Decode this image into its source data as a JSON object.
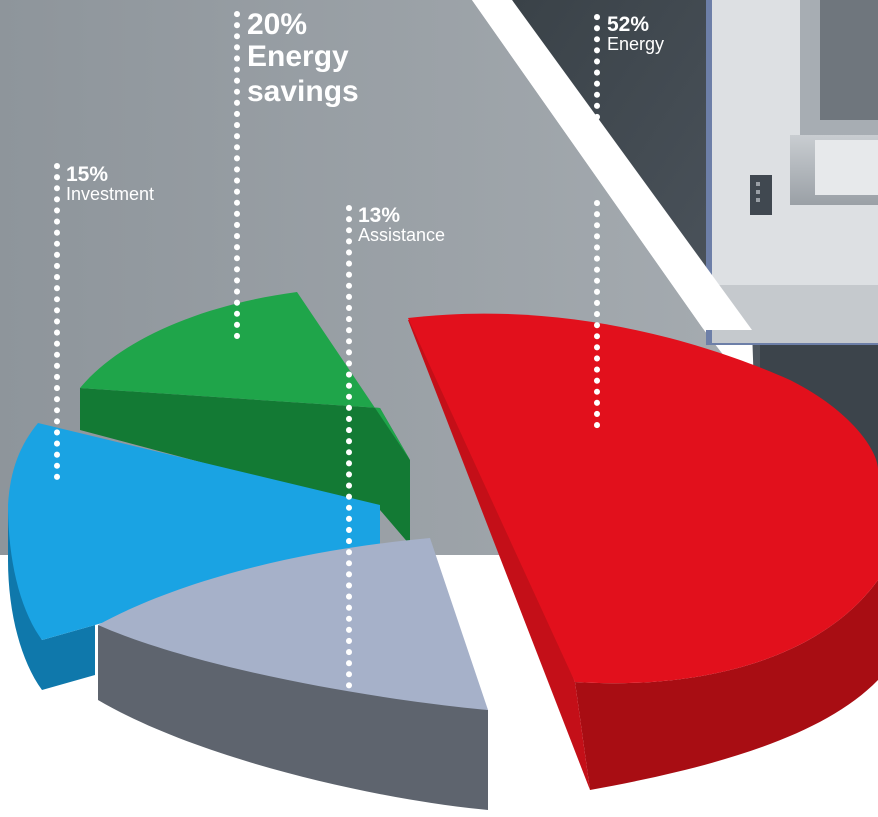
{
  "chart_data": {
    "type": "pie",
    "style": "3d-exploded",
    "slices": [
      {
        "key": "energy",
        "pct_label": "52%",
        "label": "Energy",
        "value": 52,
        "color": "#e2101c",
        "side_color": "#a80d13"
      },
      {
        "key": "energy_savings",
        "pct_label": "20%",
        "label": "Energy savings",
        "value": 20,
        "color": "#1fa54a",
        "side_color": "#137a34"
      },
      {
        "key": "investment",
        "pct_label": "15%",
        "label": "Investment",
        "value": 15,
        "color": "#1aa3e3",
        "side_color": "#0f78ab"
      },
      {
        "key": "assistance",
        "pct_label": "13%",
        "label": "Assistance",
        "value": 13,
        "color": "#a6b1c9",
        "side_color": "#5e646e"
      }
    ]
  },
  "background": {
    "panel_color": "#9aa1a6",
    "machine_color": "#4a5259",
    "floor_color": "#ffffff"
  }
}
